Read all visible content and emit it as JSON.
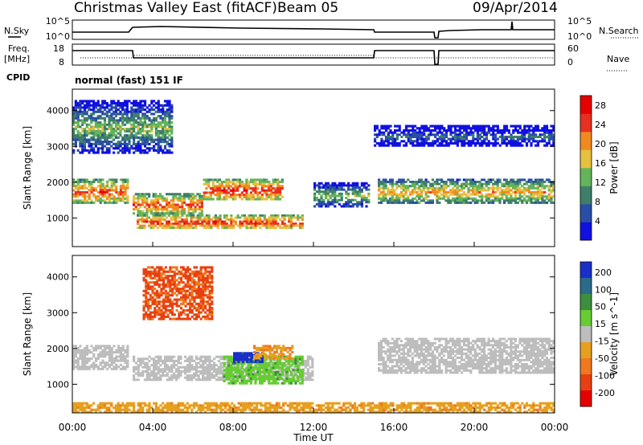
{
  "header": {
    "station": "Christmas Valley East (fitACF)",
    "beam": "Beam 05",
    "date": "09/Apr/2014"
  },
  "small_panels": {
    "nsky_label": "N.Sky",
    "nsearch_label": "N.Search",
    "nsky_ticks": [
      "10^5",
      "10^0"
    ],
    "nsearch_ticks": [
      "10^5",
      "10^0"
    ],
    "freq_label": "Freq.",
    "freq_unit": "[MHz]",
    "freq_ticks": [
      "18",
      "8"
    ],
    "nave_label": "Nave",
    "nave_ticks": [
      "60",
      "0"
    ],
    "cpid_label": "CPID",
    "cpid_text": "normal (fast) 151 IF"
  },
  "icons": {
    "legend_dotted": "dotted-line-legend",
    "legend_solid": "solid-line-legend"
  },
  "colors": {
    "power_scale": [
      "#1010e0",
      "#2a4ea8",
      "#3f7f6a",
      "#64b45a",
      "#e6c040",
      "#f08a20",
      "#e83020",
      "#e60000"
    ],
    "velocity_scale": [
      "#1a2ec8",
      "#2a6a8a",
      "#3d8f3d",
      "#66cc33",
      "#bdbdbd",
      "#e6a020",
      "#f07820",
      "#e84010",
      "#e60000"
    ]
  },
  "chart_data": [
    {
      "type": "heatmap",
      "name": "Power",
      "ylabel": "Slant Range [km]",
      "yticks": [
        "1000",
        "2000",
        "3000",
        "4000"
      ],
      "ylim": [
        200,
        4600
      ],
      "xlim": [
        0,
        24
      ],
      "colorbar": {
        "label": "Power [dB]",
        "ticks": [
          "4",
          "8",
          "12",
          "16",
          "20",
          "24",
          "28"
        ],
        "range": [
          0,
          30
        ]
      },
      "features": [
        {
          "t0": 0.0,
          "t1": 2.8,
          "r": [
            1400,
            2100
          ],
          "dB": 24
        },
        {
          "t0": 3.0,
          "t1": 6.5,
          "r": [
            1100,
            1700
          ],
          "dB": 24
        },
        {
          "t0": 3.2,
          "t1": 11.5,
          "r": [
            700,
            1100
          ],
          "dB": 26
        },
        {
          "t0": 6.5,
          "t1": 10.5,
          "r": [
            1500,
            2100
          ],
          "dB": 26
        },
        {
          "t0": 12.0,
          "t1": 14.8,
          "r": [
            1300,
            2000
          ],
          "dB": 14
        },
        {
          "t0": 15.2,
          "t1": 24.0,
          "r": [
            1400,
            2100
          ],
          "dB": 20
        },
        {
          "t0": 0.0,
          "t1": 5.0,
          "r": [
            2800,
            4300
          ],
          "dB": 14
        },
        {
          "t0": 15.0,
          "t1": 24.0,
          "r": [
            3000,
            3600
          ],
          "dB": 8
        }
      ]
    },
    {
      "type": "heatmap",
      "name": "Velocity",
      "ylabel": "Slant Range [km]",
      "yticks": [
        "1000",
        "2000",
        "3000",
        "4000"
      ],
      "ylim": [
        200,
        4600
      ],
      "xlim": [
        0,
        24
      ],
      "xlabel": "Time UT",
      "xticks": [
        "00:00",
        "04:00",
        "08:00",
        "12:00",
        "16:00",
        "20:00",
        "00:00"
      ],
      "colorbar": {
        "label": "Velocity [m s^-1]",
        "ticks": [
          "200",
          "100",
          "50",
          "15",
          "-15",
          "-50",
          "-100",
          "-200"
        ],
        "range": [
          -250,
          250
        ]
      },
      "features": [
        {
          "t0": 0.0,
          "t1": 2.8,
          "r": [
            1400,
            2100
          ],
          "v": 0
        },
        {
          "t0": 3.0,
          "t1": 12.0,
          "r": [
            1100,
            1800
          ],
          "v": 0
        },
        {
          "t0": 7.5,
          "t1": 11.5,
          "r": [
            1000,
            1800
          ],
          "v": 60
        },
        {
          "t0": 8.0,
          "t1": 9.5,
          "r": [
            1600,
            1900
          ],
          "v": 220
        },
        {
          "t0": 9.0,
          "t1": 11.0,
          "r": [
            1700,
            2100
          ],
          "v": -70
        },
        {
          "t0": 15.2,
          "t1": 24.0,
          "r": [
            1300,
            2300
          ],
          "v": 0
        },
        {
          "t0": 3.5,
          "t1": 7.0,
          "r": [
            2800,
            4300
          ],
          "v": -150
        },
        {
          "t0": 0.0,
          "t1": 24.0,
          "r": [
            200,
            500
          ],
          "v": -60
        }
      ]
    }
  ]
}
